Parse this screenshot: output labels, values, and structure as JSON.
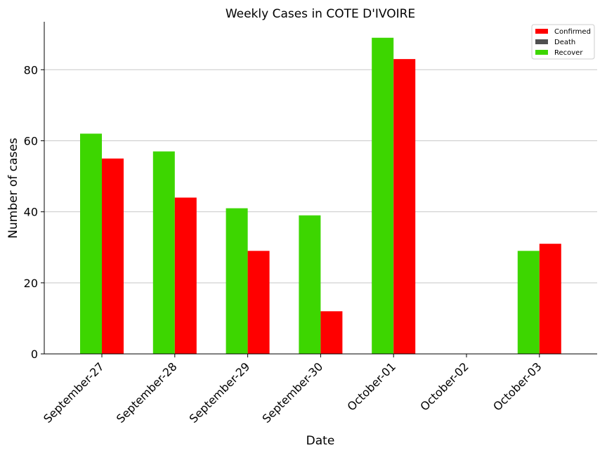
{
  "chart_data": {
    "type": "bar",
    "title": "Weekly Cases in COTE D'IVOIRE",
    "xlabel": "Date",
    "ylabel": "Number of cases",
    "categories": [
      "September-27",
      "September-28",
      "September-29",
      "September-30",
      "October-01",
      "October-02",
      "October-03"
    ],
    "series": [
      {
        "name": "Confirmed",
        "color": "#ff0000",
        "values": [
          55,
          44,
          29,
          12,
          83,
          0,
          31
        ]
      },
      {
        "name": "Death",
        "color": "#505050",
        "values": [
          0,
          0,
          0,
          0,
          0,
          0,
          0
        ]
      },
      {
        "name": "Recover",
        "color": "#3dd600",
        "values": [
          62,
          57,
          41,
          39,
          89,
          0,
          29
        ]
      }
    ],
    "ylim": [
      0,
      93.5
    ],
    "yticks": [
      0,
      20,
      40,
      60,
      80
    ],
    "grid": "horizontal",
    "legend_position": "top-right"
  }
}
